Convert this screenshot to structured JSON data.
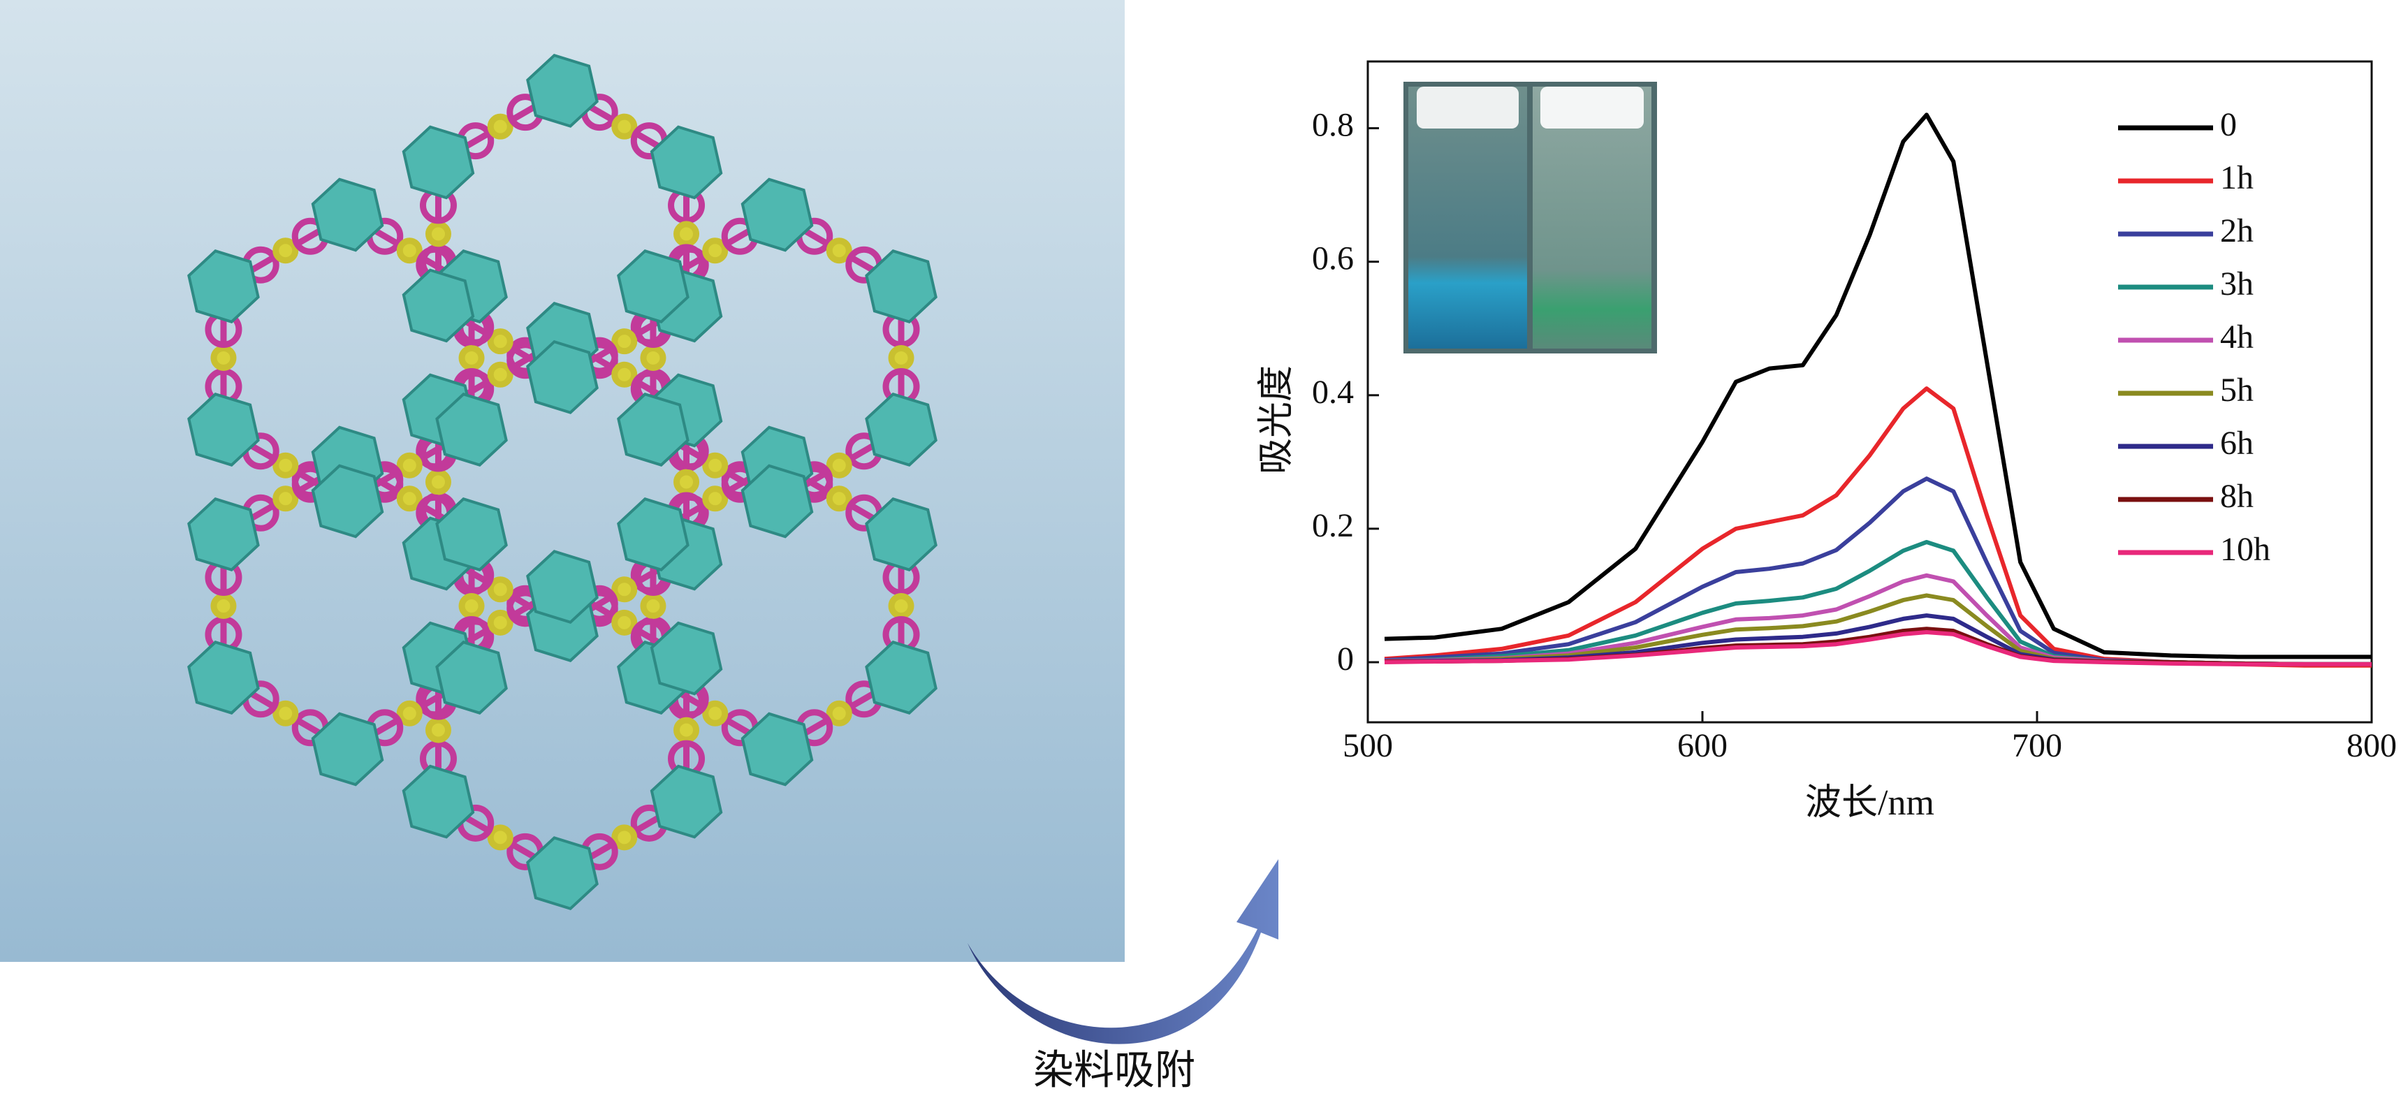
{
  "caption": "染料吸附",
  "chart_data": {
    "type": "line",
    "x_label": "波长/nm",
    "y_label": "吸光度",
    "x": [
      505,
      520,
      540,
      560,
      580,
      600,
      610,
      620,
      630,
      640,
      650,
      660,
      667,
      675,
      685,
      695,
      705,
      720,
      740,
      760,
      780,
      800
    ],
    "xlim": [
      500,
      800
    ],
    "xticks": [
      500,
      600,
      700,
      800
    ],
    "ylim": [
      -0.09,
      0.9
    ],
    "yticks": [
      0,
      0.2,
      0.4,
      0.6,
      0.8
    ],
    "grid": false,
    "legend": "upper right",
    "series": [
      {
        "name": "0",
        "color": "#000000",
        "values": [
          0.035,
          0.037,
          0.05,
          0.09,
          0.17,
          0.33,
          0.42,
          0.44,
          0.445,
          0.52,
          0.64,
          0.78,
          0.82,
          0.75,
          0.45,
          0.15,
          0.05,
          0.015,
          0.01,
          0.008,
          0.008,
          0.008
        ]
      },
      {
        "name": "1h",
        "color": "#e8262b",
        "values": [
          0.005,
          0.01,
          0.02,
          0.04,
          0.09,
          0.17,
          0.2,
          0.21,
          0.22,
          0.25,
          0.31,
          0.38,
          0.41,
          0.38,
          0.22,
          0.07,
          0.02,
          0.005,
          0,
          -0.003,
          -0.005,
          -0.005
        ]
      },
      {
        "name": "2h",
        "color": "#3a3f9c",
        "values": [
          0.003,
          0.007,
          0.013,
          0.027,
          0.06,
          0.113,
          0.135,
          0.14,
          0.148,
          0.168,
          0.209,
          0.256,
          0.275,
          0.256,
          0.149,
          0.047,
          0.014,
          0.003,
          0,
          -0.002,
          -0.003,
          -0.003
        ]
      },
      {
        "name": "3h",
        "color": "#1c8c80",
        "values": [
          0.002,
          0.004,
          0.009,
          0.018,
          0.04,
          0.074,
          0.088,
          0.092,
          0.097,
          0.11,
          0.137,
          0.167,
          0.18,
          0.167,
          0.097,
          0.031,
          0.009,
          0.002,
          0,
          -0.002,
          -0.003,
          -0.003
        ]
      },
      {
        "name": "4h",
        "color": "#c050b0",
        "values": [
          0.002,
          0.003,
          0.006,
          0.013,
          0.029,
          0.053,
          0.064,
          0.066,
          0.07,
          0.079,
          0.099,
          0.121,
          0.13,
          0.121,
          0.07,
          0.022,
          0.007,
          0.002,
          0,
          -0.002,
          -0.003,
          -0.003
        ]
      },
      {
        "name": "5h",
        "color": "#8a8a20",
        "values": [
          0.001,
          0.002,
          0.005,
          0.01,
          0.022,
          0.041,
          0.049,
          0.051,
          0.054,
          0.061,
          0.076,
          0.093,
          0.1,
          0.093,
          0.054,
          0.017,
          0.005,
          0.001,
          0,
          -0.002,
          -0.003,
          -0.003
        ]
      },
      {
        "name": "6h",
        "color": "#2e2a8a",
        "values": [
          0.001,
          0.002,
          0.003,
          0.007,
          0.015,
          0.029,
          0.034,
          0.036,
          0.038,
          0.043,
          0.053,
          0.065,
          0.07,
          0.065,
          0.038,
          0.012,
          0.004,
          0.001,
          0,
          -0.002,
          -0.003,
          -0.003
        ]
      },
      {
        "name": "8h",
        "color": "#7a1010",
        "values": [
          0.001,
          0.001,
          0.002,
          0.005,
          0.011,
          0.021,
          0.025,
          0.026,
          0.027,
          0.031,
          0.038,
          0.047,
          0.05,
          0.047,
          0.027,
          0.009,
          0.003,
          0.001,
          0,
          -0.002,
          -0.003,
          -0.003
        ]
      },
      {
        "name": "10h",
        "color": "#e8287a",
        "values": [
          0,
          0.001,
          0.002,
          0.004,
          0.01,
          0.018,
          0.022,
          0.023,
          0.024,
          0.027,
          0.034,
          0.042,
          0.045,
          0.042,
          0.024,
          0.008,
          0.002,
          0,
          -0.002,
          -0.003,
          -0.003,
          -0.003
        ]
      }
    ]
  }
}
